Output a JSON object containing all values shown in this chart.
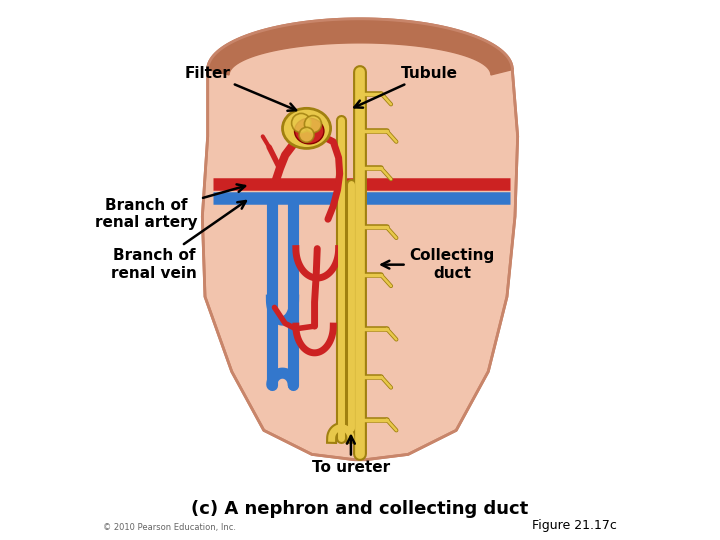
{
  "title": "(c) A nephron and collecting duct",
  "figure_label": "Figure 21.17c",
  "copyright": "© 2010 Pearson Education, Inc.",
  "background_color": "#ffffff",
  "kidney_fill": "#f2c4ad",
  "kidney_edge": "#c8856a",
  "cortex_fill": "#b87050",
  "artery_color": "#cc2222",
  "vein_color": "#3377cc",
  "tubule_color": "#e8c84a",
  "tubule_outline": "#a08010",
  "text_color": "#000000"
}
